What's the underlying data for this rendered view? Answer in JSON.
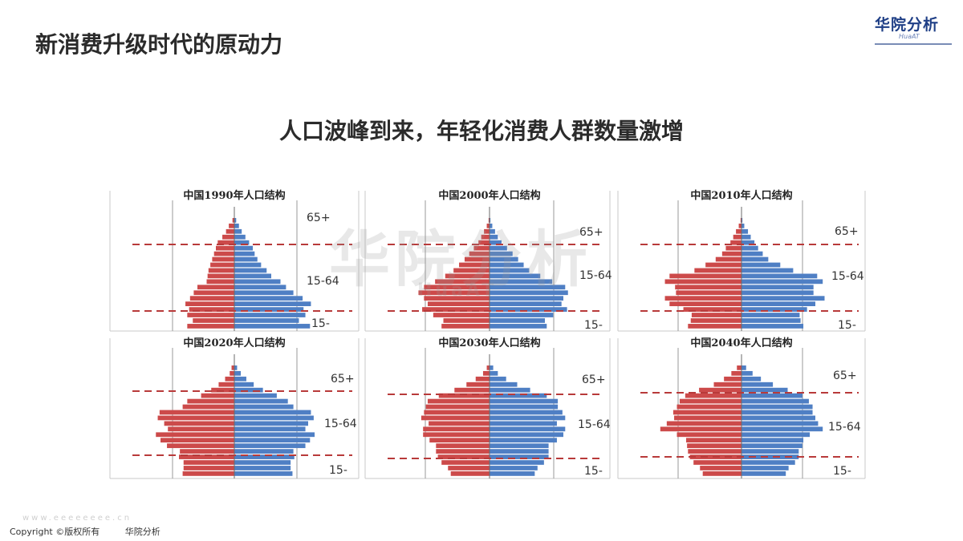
{
  "header": {
    "title": "新消费升级时代的原动力"
  },
  "logo": {
    "text": "华院分析",
    "sub": "HuaAT"
  },
  "subtitle": "人口波峰到来，年轻化消费人群数量激增",
  "watermark": {
    "text": "华院分析",
    "sub": "HuaAT"
  },
  "footer": {
    "copyright": "Copyright ©版权所有",
    "brand": "华院分析",
    "faint_url": "www.eeeeeeee.cn"
  },
  "colors": {
    "male": "#cc4a4a",
    "female": "#4f7fc4",
    "divider": "#b83a3a",
    "border": "#c8c8c8"
  },
  "chart_data": [
    {
      "type": "bar",
      "title": "中国1990年人口结构",
      "labels": [
        "65+",
        "15-64",
        "15-"
      ],
      "male": [
        2,
        6,
        9,
        13,
        18,
        20,
        22,
        24,
        26,
        28,
        29,
        30,
        40,
        44,
        48,
        53,
        49,
        51,
        45,
        51
      ],
      "female": [
        2,
        5,
        8,
        12,
        16,
        20,
        22,
        25,
        29,
        35,
        40,
        50,
        56,
        64,
        74,
        83,
        75,
        77,
        70,
        82
      ]
    },
    {
      "type": "bar",
      "title": "中国2000年人口结构",
      "labels": [
        "65+",
        "15-64",
        "15-"
      ],
      "male": [
        1,
        3,
        6,
        9,
        12,
        17,
        22,
        27,
        33,
        39,
        48,
        59,
        71,
        77,
        71,
        67,
        73,
        61,
        50,
        52
      ],
      "female": [
        1,
        3,
        6,
        9,
        13,
        19,
        25,
        31,
        37,
        43,
        55,
        68,
        82,
        85,
        80,
        78,
        84,
        69,
        60,
        62
      ]
    },
    {
      "type": "bar",
      "title": "中国2010年人口结构",
      "labels": [
        "65+",
        "15-64",
        "15-"
      ],
      "male": [
        1,
        3,
        6,
        9,
        12,
        17,
        21,
        28,
        39,
        51,
        78,
        83,
        72,
        71,
        83,
        78,
        63,
        54,
        55,
        58
      ],
      "female": [
        1,
        3,
        7,
        10,
        14,
        18,
        23,
        29,
        42,
        56,
        82,
        88,
        78,
        78,
        90,
        80,
        71,
        63,
        64,
        67
      ]
    },
    {
      "type": "bar",
      "title": "中国2020年人口结构",
      "labels": [
        "65+",
        "15-64",
        "15-"
      ],
      "male": [
        3,
        5,
        10,
        17,
        25,
        36,
        51,
        56,
        81,
        83,
        76,
        72,
        85,
        80,
        73,
        59,
        60,
        55,
        55,
        56
      ],
      "female": [
        3,
        7,
        13,
        21,
        31,
        46,
        58,
        64,
        83,
        86,
        80,
        77,
        87,
        82,
        77,
        64,
        65,
        61,
        61,
        63
      ]
    },
    {
      "type": "bar",
      "title": "中国2030年人口结构",
      "labels": [
        "65+",
        "15-64",
        "15-"
      ],
      "male": [
        3,
        7,
        15,
        25,
        38,
        55,
        67,
        69,
        71,
        74,
        66,
        72,
        72,
        65,
        58,
        58,
        56,
        52,
        45,
        42
      ],
      "female": [
        4,
        9,
        18,
        30,
        44,
        62,
        74,
        74,
        79,
        82,
        73,
        82,
        80,
        73,
        64,
        64,
        64,
        59,
        52,
        49
      ]
    },
    {
      "type": "bar",
      "title": "中国2040年人口结构",
      "labels": [
        "65+",
        "15-64",
        "15-"
      ],
      "male": [
        5,
        11,
        19,
        30,
        46,
        61,
        67,
        70,
        74,
        73,
        81,
        88,
        70,
        60,
        59,
        58,
        56,
        52,
        45,
        42
      ],
      "female": [
        5,
        12,
        21,
        34,
        50,
        66,
        73,
        77,
        77,
        80,
        83,
        88,
        74,
        67,
        66,
        62,
        62,
        58,
        51,
        48
      ]
    }
  ]
}
